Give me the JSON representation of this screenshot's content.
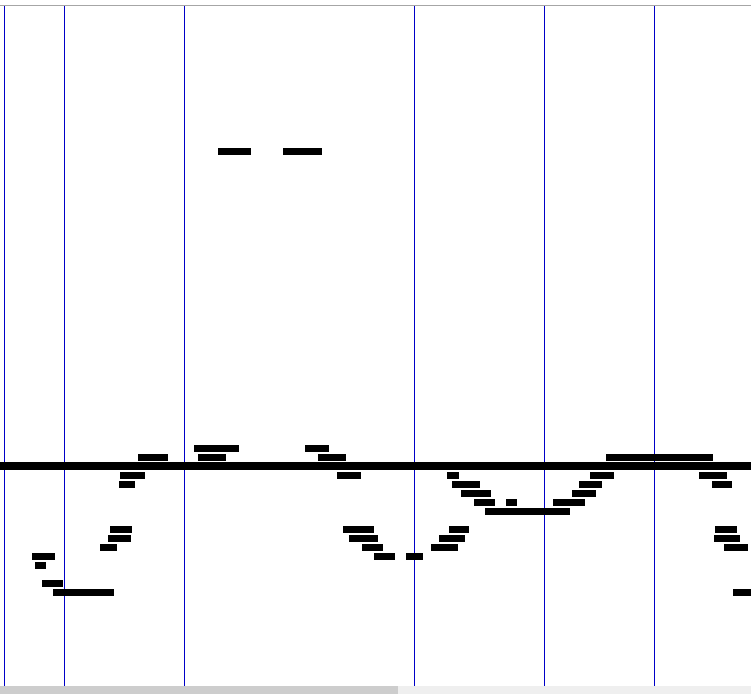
{
  "view": {
    "accent_line_color": "#0000c8",
    "note_color": "#000000"
  },
  "scrollbar": {
    "thumb_fraction": 0.53
  }
}
